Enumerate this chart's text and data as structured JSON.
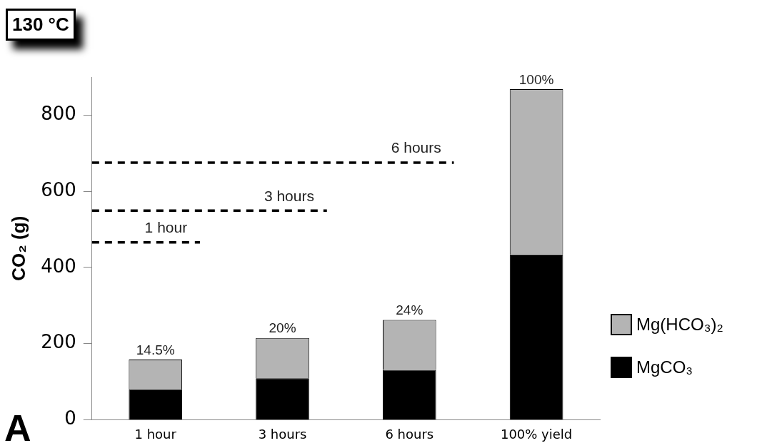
{
  "chart_data": {
    "type": "bar",
    "ylabel": "CO₂ (g)",
    "categories": [
      "1 hour",
      "3 hours",
      "6 hours",
      "100% yield"
    ],
    "stacked": true,
    "series": [
      {
        "name": "MgCO₃",
        "color": "#000000",
        "values": [
          80,
          109,
          131,
          434
        ]
      },
      {
        "name": "Mg(HCO₃)₂",
        "color": "#b4b4b4",
        "values": [
          78,
          106,
          131,
          434
        ]
      }
    ],
    "ylim": [
      0,
      900
    ],
    "yticks": [
      0,
      200,
      400,
      600,
      800
    ],
    "grid": false,
    "legend": "right",
    "ref_lines": [
      {
        "axis": "y",
        "value": 466,
        "label": "1 hour",
        "color": "#000000",
        "line_style": "dashed"
      },
      {
        "axis": "y",
        "value": 549,
        "label": "3 hours",
        "color": "#000000",
        "line_style": "dashed"
      },
      {
        "axis": "y",
        "value": 675,
        "label": "6 hours",
        "color": "#000000",
        "line_style": "dashed"
      }
    ],
    "annotations": [
      "130 °C",
      "A",
      {
        "text": "14.5%",
        "x": "1 hour",
        "y": 158
      },
      {
        "text": "20%",
        "x": "3 hours",
        "y": 215
      },
      {
        "text": "24%",
        "x": "6 hours",
        "y": 262
      },
      {
        "text": "100%",
        "x": "100% yield",
        "y": 868
      }
    ]
  }
}
